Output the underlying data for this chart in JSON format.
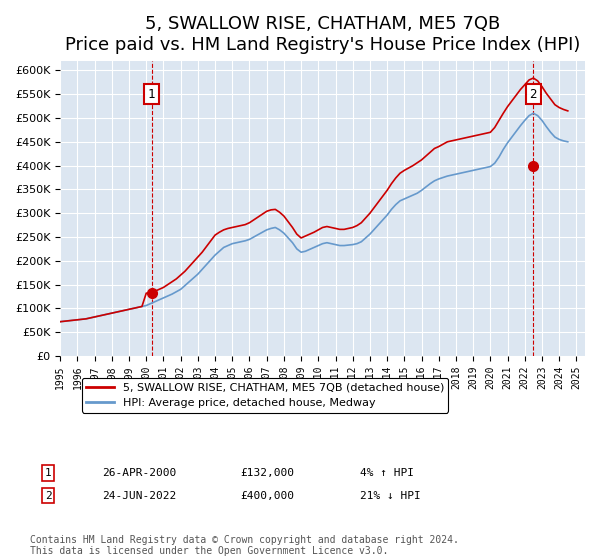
{
  "title": "5, SWALLOW RISE, CHATHAM, ME5 7QB",
  "subtitle": "Price paid vs. HM Land Registry's House Price Index (HPI)",
  "xlabel": "",
  "ylabel": "",
  "ylim": [
    0,
    620000
  ],
  "yticks": [
    0,
    50000,
    100000,
    150000,
    200000,
    250000,
    300000,
    350000,
    400000,
    450000,
    500000,
    550000,
    600000
  ],
  "xlim_start": 1995.0,
  "xlim_end": 2025.5,
  "background_color": "#dce6f1",
  "plot_bg_color": "#dce6f1",
  "grid_color": "#ffffff",
  "title_fontsize": 13,
  "subtitle_fontsize": 11,
  "legend_label_red": "5, SWALLOW RISE, CHATHAM, ME5 7QB (detached house)",
  "legend_label_blue": "HPI: Average price, detached house, Medway",
  "annotation1_label": "1",
  "annotation1_date": "26-APR-2000",
  "annotation1_price": "£132,000",
  "annotation1_hpi": "4% ↑ HPI",
  "annotation2_label": "2",
  "annotation2_date": "24-JUN-2022",
  "annotation2_price": "£400,000",
  "annotation2_hpi": "21% ↓ HPI",
  "footer": "Contains HM Land Registry data © Crown copyright and database right 2024.\nThis data is licensed under the Open Government Licence v3.0.",
  "sale1_year": 2000.32,
  "sale1_price": 132000,
  "sale2_year": 2022.48,
  "sale2_price": 400000,
  "red_line_color": "#cc0000",
  "blue_line_color": "#6699cc",
  "sale_dot_color": "#cc0000",
  "hpi_years": [
    1995,
    1995.25,
    1995.5,
    1995.75,
    1996,
    1996.25,
    1996.5,
    1996.75,
    1997,
    1997.25,
    1997.5,
    1997.75,
    1998,
    1998.25,
    1998.5,
    1998.75,
    1999,
    1999.25,
    1999.5,
    1999.75,
    2000,
    2000.25,
    2000.5,
    2000.75,
    2001,
    2001.25,
    2001.5,
    2001.75,
    2002,
    2002.25,
    2002.5,
    2002.75,
    2003,
    2003.25,
    2003.5,
    2003.75,
    2004,
    2004.25,
    2004.5,
    2004.75,
    2005,
    2005.25,
    2005.5,
    2005.75,
    2006,
    2006.25,
    2006.5,
    2006.75,
    2007,
    2007.25,
    2007.5,
    2007.75,
    2008,
    2008.25,
    2008.5,
    2008.75,
    2009,
    2009.25,
    2009.5,
    2009.75,
    2010,
    2010.25,
    2010.5,
    2010.75,
    2011,
    2011.25,
    2011.5,
    2011.75,
    2012,
    2012.25,
    2012.5,
    2012.75,
    2013,
    2013.25,
    2013.5,
    2013.75,
    2014,
    2014.25,
    2014.5,
    2014.75,
    2015,
    2015.25,
    2015.5,
    2015.75,
    2016,
    2016.25,
    2016.5,
    2016.75,
    2017,
    2017.25,
    2017.5,
    2017.75,
    2018,
    2018.25,
    2018.5,
    2018.75,
    2019,
    2019.25,
    2019.5,
    2019.75,
    2020,
    2020.25,
    2020.5,
    2020.75,
    2021,
    2021.25,
    2021.5,
    2021.75,
    2022,
    2022.25,
    2022.5,
    2022.75,
    2023,
    2023.25,
    2023.5,
    2023.75,
    2024,
    2024.25,
    2024.5
  ],
  "hpi_values": [
    72000,
    73000,
    74000,
    75000,
    76000,
    77000,
    78000,
    80000,
    82000,
    84000,
    86000,
    88000,
    90000,
    92000,
    94000,
    96000,
    98000,
    100000,
    102000,
    104000,
    106000,
    110000,
    114000,
    118000,
    122000,
    126000,
    130000,
    135000,
    140000,
    148000,
    156000,
    164000,
    172000,
    182000,
    192000,
    202000,
    212000,
    220000,
    228000,
    232000,
    236000,
    238000,
    240000,
    242000,
    245000,
    250000,
    255000,
    260000,
    265000,
    268000,
    270000,
    265000,
    258000,
    248000,
    238000,
    225000,
    218000,
    220000,
    224000,
    228000,
    232000,
    236000,
    238000,
    236000,
    234000,
    232000,
    232000,
    233000,
    234000,
    236000,
    240000,
    248000,
    256000,
    266000,
    276000,
    286000,
    296000,
    308000,
    318000,
    326000,
    330000,
    334000,
    338000,
    342000,
    348000,
    355000,
    362000,
    368000,
    372000,
    375000,
    378000,
    380000,
    382000,
    384000,
    386000,
    388000,
    390000,
    392000,
    394000,
    396000,
    398000,
    405000,
    418000,
    434000,
    448000,
    460000,
    472000,
    484000,
    495000,
    505000,
    510000,
    505000,
    495000,
    482000,
    470000,
    460000,
    455000,
    452000,
    450000
  ],
  "red_years": [
    1995,
    1995.25,
    1995.5,
    1995.75,
    1996,
    1996.25,
    1996.5,
    1996.75,
    1997,
    1997.25,
    1997.5,
    1997.75,
    1998,
    1998.25,
    1998.5,
    1998.75,
    1999,
    1999.25,
    1999.5,
    1999.75,
    2000,
    2000.25,
    2000.5,
    2000.75,
    2001,
    2001.25,
    2001.5,
    2001.75,
    2002,
    2002.25,
    2002.5,
    2002.75,
    2003,
    2003.25,
    2003.5,
    2003.75,
    2004,
    2004.25,
    2004.5,
    2004.75,
    2005,
    2005.25,
    2005.5,
    2005.75,
    2006,
    2006.25,
    2006.5,
    2006.75,
    2007,
    2007.25,
    2007.5,
    2007.75,
    2008,
    2008.25,
    2008.5,
    2008.75,
    2009,
    2009.25,
    2009.5,
    2009.75,
    2010,
    2010.25,
    2010.5,
    2010.75,
    2011,
    2011.25,
    2011.5,
    2011.75,
    2012,
    2012.25,
    2012.5,
    2012.75,
    2013,
    2013.25,
    2013.5,
    2013.75,
    2014,
    2014.25,
    2014.5,
    2014.75,
    2015,
    2015.25,
    2015.5,
    2015.75,
    2016,
    2016.25,
    2016.5,
    2016.75,
    2017,
    2017.25,
    2017.5,
    2017.75,
    2018,
    2018.25,
    2018.5,
    2018.75,
    2019,
    2019.25,
    2019.5,
    2019.75,
    2020,
    2020.25,
    2020.5,
    2020.75,
    2021,
    2021.25,
    2021.5,
    2021.75,
    2022,
    2022.25,
    2022.5,
    2022.75,
    2023,
    2023.25,
    2023.5,
    2023.75,
    2024,
    2024.25,
    2024.5
  ],
  "red_values": [
    72000,
    73000,
    74000,
    75000,
    76000,
    77000,
    78000,
    80000,
    82000,
    84000,
    86000,
    88000,
    90000,
    92000,
    94000,
    96000,
    98000,
    100000,
    102000,
    104000,
    132000,
    132000,
    136000,
    140000,
    144000,
    150000,
    156000,
    162000,
    170000,
    178000,
    188000,
    198000,
    208000,
    218000,
    230000,
    242000,
    254000,
    260000,
    265000,
    268000,
    270000,
    272000,
    274000,
    276000,
    280000,
    286000,
    292000,
    298000,
    304000,
    307000,
    308000,
    302000,
    294000,
    282000,
    270000,
    256000,
    248000,
    252000,
    256000,
    260000,
    265000,
    270000,
    272000,
    270000,
    268000,
    266000,
    266000,
    268000,
    270000,
    274000,
    280000,
    290000,
    300000,
    312000,
    324000,
    336000,
    348000,
    362000,
    374000,
    384000,
    390000,
    395000,
    400000,
    406000,
    412000,
    420000,
    428000,
    436000,
    440000,
    445000,
    450000,
    452000,
    454000,
    456000,
    458000,
    460000,
    462000,
    464000,
    466000,
    468000,
    470000,
    480000,
    495000,
    510000,
    524000,
    536000,
    548000,
    560000,
    570000,
    580000,
    584000,
    578000,
    566000,
    552000,
    540000,
    528000,
    522000,
    518000,
    515000
  ]
}
